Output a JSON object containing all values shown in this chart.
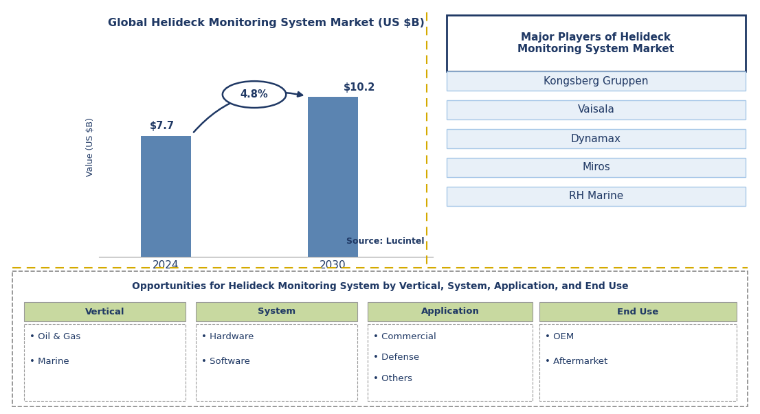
{
  "title": "Global Helideck Monitoring System Market (US $B)",
  "bar_years": [
    "2024",
    "2030"
  ],
  "bar_values": [
    7.7,
    10.2
  ],
  "bar_color": "#5b84b1",
  "bar_labels": [
    "$7.7",
    "$10.2"
  ],
  "cagr_text": "4.8%",
  "ylabel": "Value (US $B)",
  "source_text": "Source: Lucintel",
  "right_box_title": "Major Players of Helideck\nMonitoring System Market",
  "right_box_items": [
    "Kongsberg Gruppen",
    "Vaisala",
    "Dynamax",
    "Miros",
    "RH Marine"
  ],
  "bottom_title": "Opportunities for Helideck Monitoring System by Vertical, System, Application, and End Use",
  "bottom_cols": [
    "Vertical",
    "System",
    "Application",
    "End Use"
  ],
  "bottom_items": [
    [
      "• Oil & Gas",
      "• Marine"
    ],
    [
      "• Hardware",
      "• Software"
    ],
    [
      "• Commercial",
      "• Defense",
      "• Others"
    ],
    [
      "• OEM",
      "• Aftermarket"
    ]
  ],
  "col_header_color": "#c8d9a0",
  "dark_blue": "#1f3864",
  "divider_color": "#d4aa00",
  "player_box_color": "#e8f0f8",
  "background_color": "#ffffff"
}
